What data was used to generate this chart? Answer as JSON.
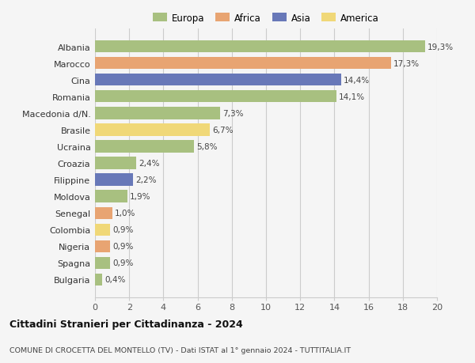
{
  "countries": [
    "Albania",
    "Marocco",
    "Cina",
    "Romania",
    "Macedonia d/N.",
    "Brasile",
    "Ucraina",
    "Croazia",
    "Filippine",
    "Moldova",
    "Senegal",
    "Colombia",
    "Nigeria",
    "Spagna",
    "Bulgaria"
  ],
  "values": [
    19.3,
    17.3,
    14.4,
    14.1,
    7.3,
    6.7,
    5.8,
    2.4,
    2.2,
    1.9,
    1.0,
    0.9,
    0.9,
    0.9,
    0.4
  ],
  "labels": [
    "19,3%",
    "17,3%",
    "14,4%",
    "14,1%",
    "7,3%",
    "6,7%",
    "5,8%",
    "2,4%",
    "2,2%",
    "1,9%",
    "1,0%",
    "0,9%",
    "0,9%",
    "0,9%",
    "0,4%"
  ],
  "continents": [
    "Europa",
    "Africa",
    "Asia",
    "Europa",
    "Europa",
    "America",
    "Europa",
    "Europa",
    "Asia",
    "Europa",
    "Africa",
    "America",
    "Africa",
    "Europa",
    "Europa"
  ],
  "colors": {
    "Europa": "#a8c080",
    "Africa": "#e8a472",
    "Asia": "#6878b8",
    "America": "#f0d878"
  },
  "title1": "Cittadini Stranieri per Cittadinanza - 2024",
  "title2": "COMUNE DI CROCETTA DEL MONTELLO (TV) - Dati ISTAT al 1° gennaio 2024 - TUTTITALIA.IT",
  "xlim": [
    0,
    20
  ],
  "xticks": [
    0,
    2,
    4,
    6,
    8,
    10,
    12,
    14,
    16,
    18,
    20
  ],
  "background_color": "#f5f5f5",
  "plot_bg_color": "#f5f5f5",
  "grid_color": "#cccccc",
  "bar_height": 0.72
}
